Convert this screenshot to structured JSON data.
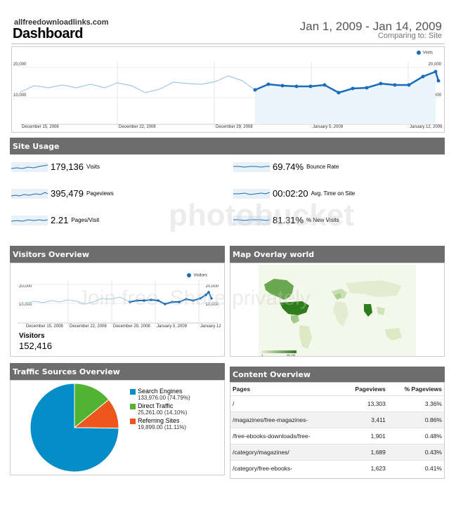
{
  "header": {
    "site_url": "allfreedownloadlinks.com",
    "title": "Dashboard",
    "date_range": "Jan 1, 2009 - Jan 14, 2009",
    "comparing": "Comparing to: Site"
  },
  "main_chart": {
    "legend": "Visits",
    "y_left": [
      "20,000",
      "10,000"
    ],
    "y_right": [
      "20,000",
      "10,000"
    ],
    "x_labels": [
      "December 15, 2008",
      "December 22, 2008",
      "December 29, 2008",
      "January 5, 2009",
      "January 12, 2009"
    ]
  },
  "site_usage": {
    "title": "Site Usage",
    "metrics": [
      {
        "value": "179,136",
        "label": "Visits"
      },
      {
        "value": "69.74%",
        "label": "Bounce Rate"
      },
      {
        "value": "395,479",
        "label": "Pageviews"
      },
      {
        "value": "00:02:20",
        "label": "Avg. Time on Site"
      },
      {
        "value": "2.21",
        "label": "Pages/Visit"
      },
      {
        "value": "81.31%",
        "label": "% New Visits"
      }
    ]
  },
  "visitors_overview": {
    "title": "Visitors Overview",
    "legend": "Visitors",
    "y_left": [
      "20,000",
      "10,000"
    ],
    "y_right": [
      "20,000",
      "10,000"
    ],
    "x_labels": [
      "December 15, 2008",
      "December 22, 2008",
      "December 29, 2008",
      "January 5, 2009",
      "January 12"
    ],
    "label": "Visitors",
    "value": "152,416"
  },
  "map_overlay": {
    "title": "Map Overlay world",
    "scale_min": "1",
    "scale_max": "26,740"
  },
  "traffic_sources": {
    "title": "Traffic Sources Overview",
    "items": [
      {
        "name": "Search Engines",
        "detail": "133,976.00 (74.79%)",
        "color": "#058dc7"
      },
      {
        "name": "Direct Traffic",
        "detail": "25,261.00 (14.10%)",
        "color": "#50b432"
      },
      {
        "name": "Referring Sites",
        "detail": "19,899.00 (11.11%)",
        "color": "#ed561b"
      }
    ]
  },
  "chart_data": {
    "type": "pie",
    "categories": [
      "Search Engines",
      "Direct Traffic",
      "Referring Sites"
    ],
    "values": [
      74.79,
      14.1,
      11.11
    ]
  },
  "content_overview": {
    "title": "Content Overview",
    "headers": [
      "Pages",
      "Pageviews",
      "% Pageviews"
    ],
    "rows": [
      {
        "page": "/",
        "views": "13,303",
        "pct": "3.36%"
      },
      {
        "page": "/magazines/free-magazines-",
        "views": "3,411",
        "pct": "0.86%"
      },
      {
        "page": "/free-ebooks-downloads/free-",
        "views": "1,901",
        "pct": "0.48%"
      },
      {
        "page": "/category/magazines/",
        "views": "1,689",
        "pct": "0.43%"
      },
      {
        "page": "/category/free-ebooks-",
        "views": "1,623",
        "pct": "0.41%"
      }
    ]
  },
  "watermark": {
    "brand": "photobucket",
    "tagline": "Join free. Share privately"
  }
}
